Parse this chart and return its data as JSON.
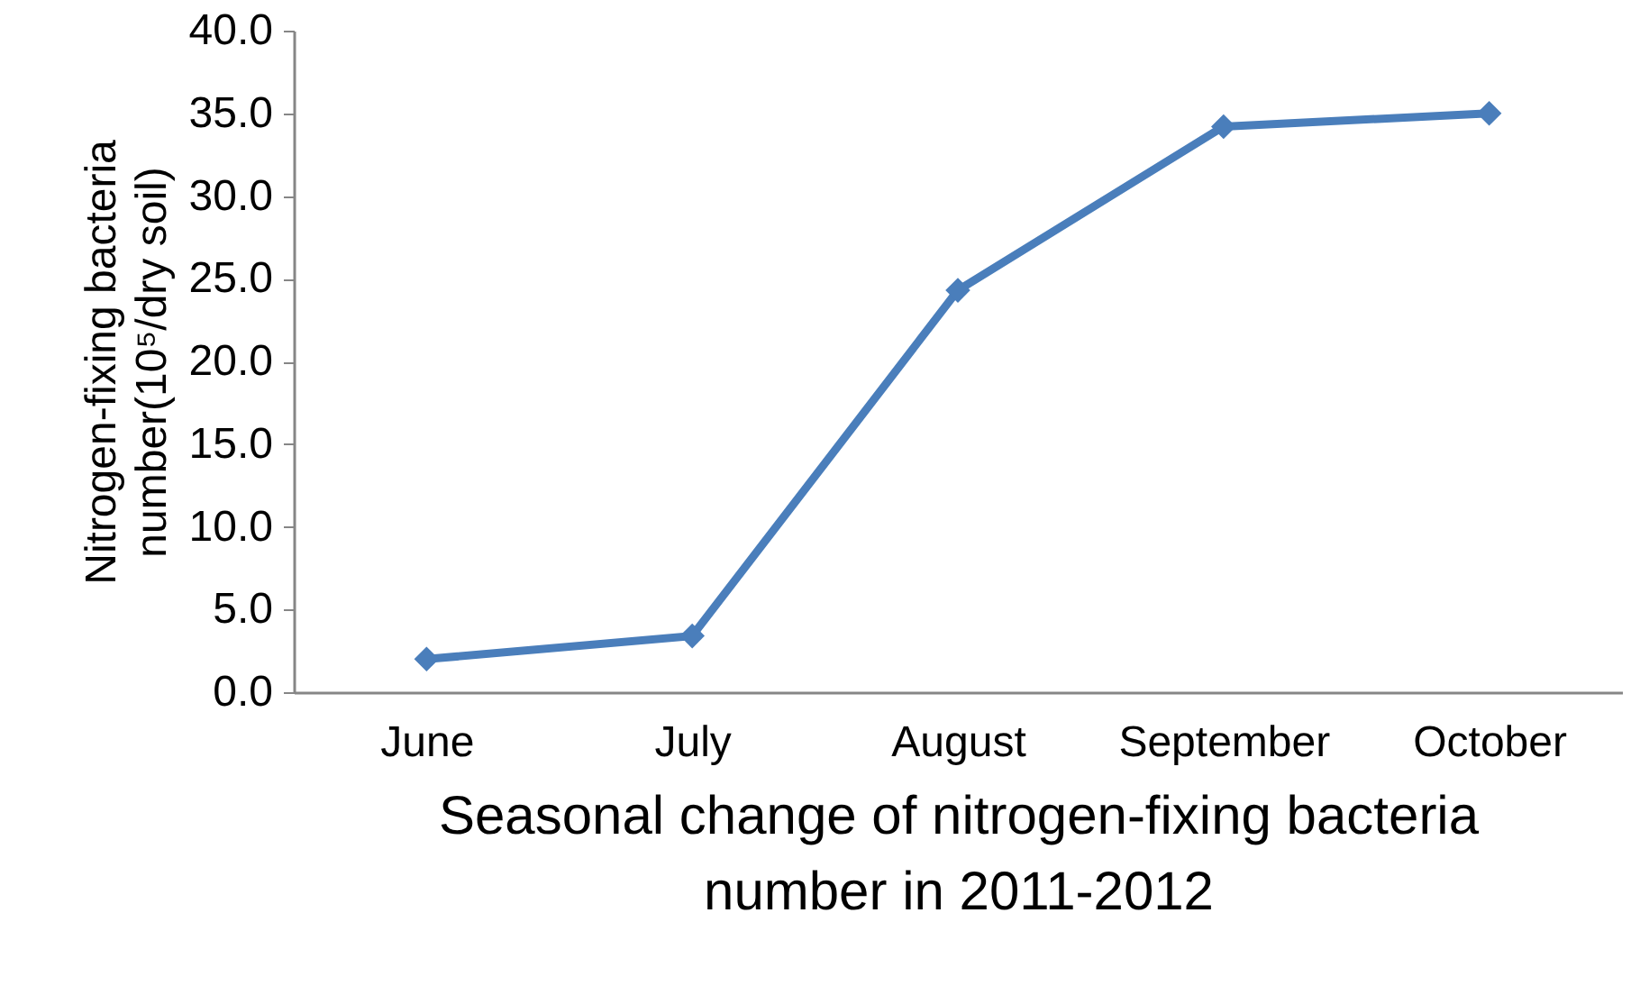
{
  "chart_data": {
    "type": "line",
    "xlabel": "Seasonal change of nitrogen-fixing bacteria number in 2011-2012",
    "ylabel": "Nitrogen-fixing bacteria number(10⁵/dry soil)",
    "categories": [
      "June",
      "July",
      "August",
      "September",
      "October"
    ],
    "series": [
      {
        "color": "#4a7ebb",
        "values": [
          2.0,
          3.4,
          24.3,
          34.2,
          35.0
        ]
      }
    ],
    "ylim": [
      0,
      40
    ],
    "yticks": [
      {
        "value": 0,
        "label": "0.0"
      },
      {
        "value": 5,
        "label": "5.0"
      },
      {
        "value": 10,
        "label": "10.0"
      },
      {
        "value": 15,
        "label": "15.0"
      },
      {
        "value": 20,
        "label": "20.0"
      },
      {
        "value": 25,
        "label": "25.0"
      },
      {
        "value": 30,
        "label": "30.0"
      },
      {
        "value": 35,
        "label": "35.0"
      },
      {
        "value": 40,
        "label": "40.0"
      }
    ],
    "grid": false,
    "marker": "diamond",
    "line_style": "solid"
  }
}
